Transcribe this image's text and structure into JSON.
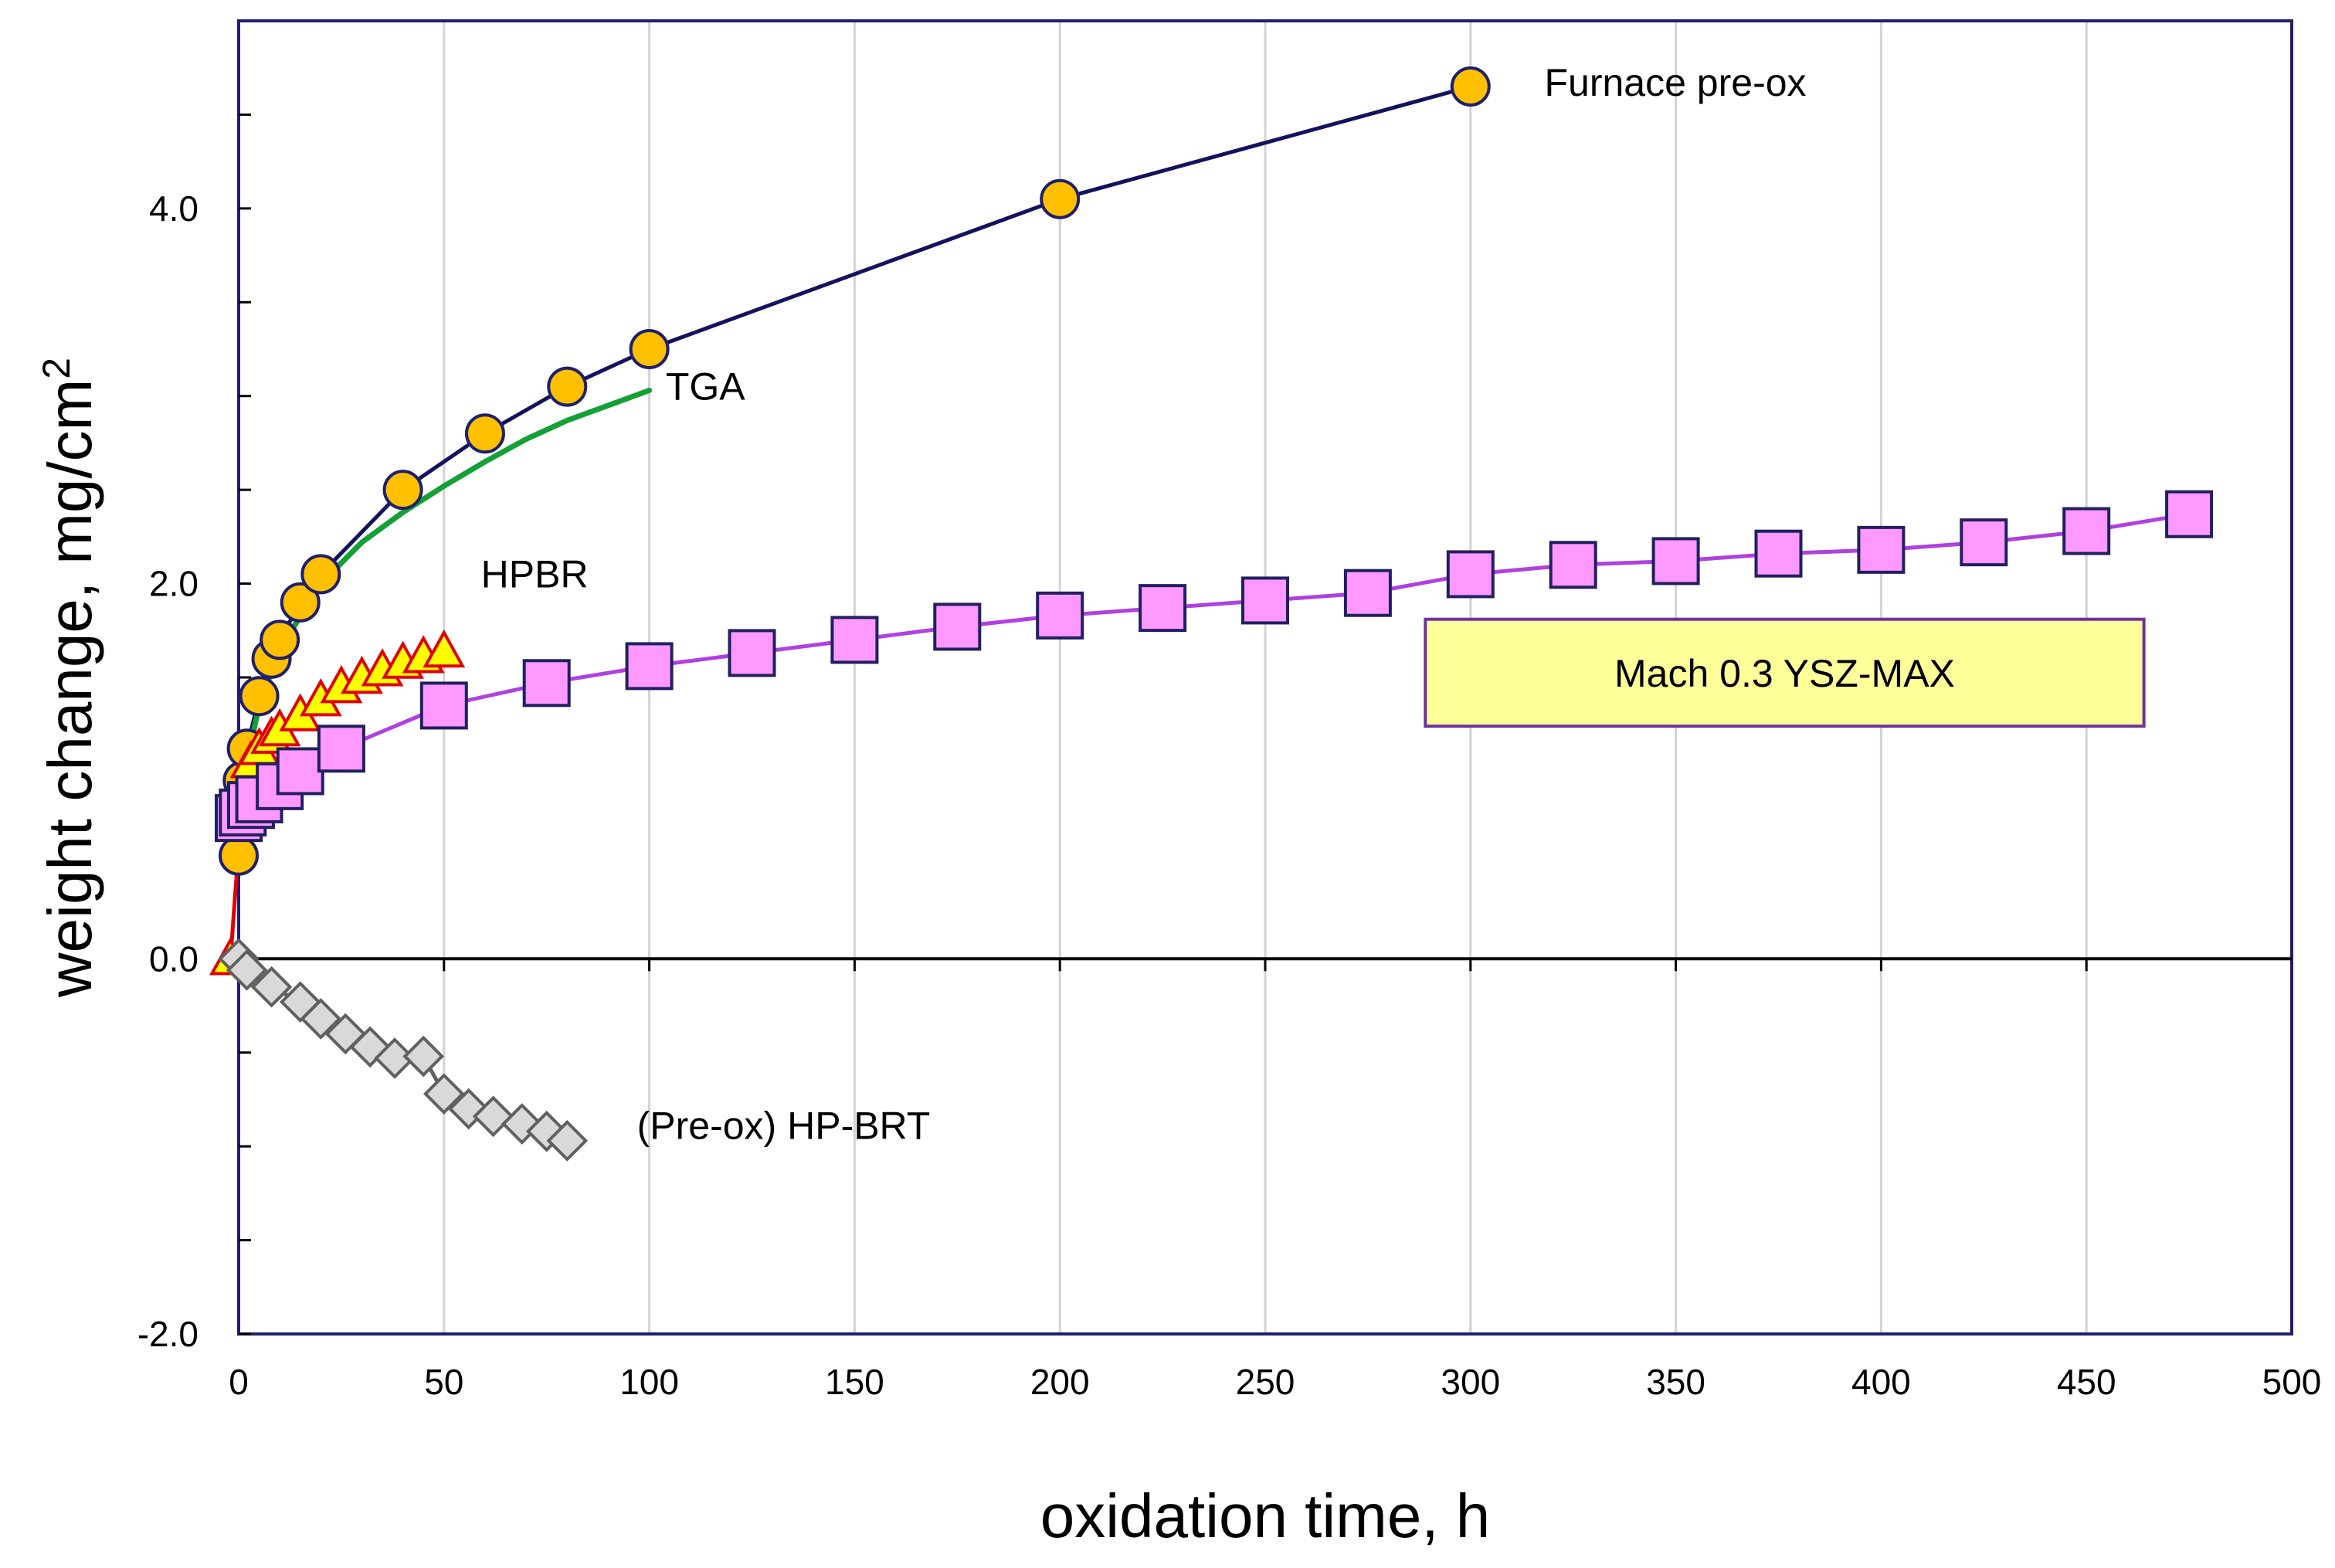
{
  "chart_data": {
    "type": "scatter",
    "xlabel": "oxidation time, h",
    "ylabel": "weight change, mg/cm",
    "ylabel_superscript": "2",
    "xlim": [
      0,
      500
    ],
    "ylim": [
      -2,
      5
    ],
    "x_ticks": [
      0,
      50,
      100,
      150,
      200,
      250,
      300,
      350,
      400,
      450,
      500
    ],
    "x_tick_labels": [
      "0",
      "50",
      "100",
      "150",
      "200",
      "250",
      "300",
      "350",
      "400",
      "450",
      "500"
    ],
    "y_ticks_labeled": [
      -2,
      0,
      2,
      4
    ],
    "y_tick_labels": [
      "-2.0",
      "0.0",
      "2.0",
      "4.0"
    ],
    "y_minor_ticks": [
      -1.5,
      -1,
      -0.5,
      0.5,
      1,
      1.5,
      2.5,
      3,
      3.5,
      4.5
    ],
    "grid": "vertical",
    "legend_box": "Mach 0.3 YSZ-MAX",
    "series": [
      {
        "name": "Furnace pre-ox",
        "marker": "circle",
        "marker_color": "#FFC000",
        "marker_edge": "#1F1F6E",
        "line_color": "#12125E",
        "x": [
          0,
          1,
          2,
          5,
          8,
          10,
          15,
          20,
          40,
          60,
          80,
          100,
          200,
          300
        ],
        "y": [
          0.55,
          0.95,
          1.12,
          1.4,
          1.6,
          1.7,
          1.9,
          2.05,
          2.5,
          2.8,
          3.05,
          3.25,
          4.05,
          4.65
        ]
      },
      {
        "name": "TGA",
        "marker": "none",
        "line_color": "#13A035",
        "x": [
          1,
          2,
          5,
          10,
          20,
          30,
          40,
          50,
          60,
          70,
          80,
          90,
          100
        ],
        "y": [
          0.75,
          1.05,
          1.35,
          1.65,
          2.0,
          2.22,
          2.38,
          2.52,
          2.65,
          2.77,
          2.87,
          2.95,
          3.03
        ]
      },
      {
        "name": "HPBR",
        "marker": "triangle",
        "marker_color": "#FFFF00",
        "marker_edge": "#E00000",
        "line_color": "#E00000",
        "x": [
          -2,
          1,
          3,
          5,
          8,
          10,
          15,
          20,
          25,
          30,
          35,
          40,
          45,
          50
        ],
        "y": [
          0.0,
          0.9,
          1.05,
          1.12,
          1.18,
          1.22,
          1.3,
          1.38,
          1.45,
          1.5,
          1.54,
          1.58,
          1.61,
          1.64
        ]
      },
      {
        "name": "Mach 0.3 YSZ-MAX",
        "marker": "square",
        "marker_color": "#FF99FF",
        "marker_edge": "#202060",
        "line_color": "#B040E0",
        "x": [
          0,
          1,
          3,
          5,
          10,
          15,
          25,
          50,
          75,
          100,
          125,
          150,
          175,
          200,
          225,
          250,
          275,
          300,
          325,
          350,
          375,
          400,
          425,
          450,
          475
        ],
        "y": [
          0.75,
          0.78,
          0.82,
          0.85,
          0.92,
          1.0,
          1.12,
          1.35,
          1.47,
          1.56,
          1.63,
          1.7,
          1.77,
          1.83,
          1.87,
          1.91,
          1.95,
          2.05,
          2.1,
          2.12,
          2.16,
          2.18,
          2.22,
          2.28,
          2.37
        ]
      },
      {
        "name": "(Pre-ox) HP-BRT",
        "marker": "diamond",
        "marker_color": "#D9D9D9",
        "marker_edge": "#606060",
        "line_color": "#606060",
        "x": [
          0,
          2,
          8,
          15,
          20,
          26,
          32,
          38,
          45,
          50,
          56,
          62,
          69,
          75,
          80
        ],
        "y": [
          0.0,
          -0.06,
          -0.15,
          -0.23,
          -0.32,
          -0.4,
          -0.47,
          -0.53,
          -0.52,
          -0.72,
          -0.8,
          -0.84,
          -0.88,
          -0.92,
          -0.97
        ]
      }
    ],
    "annotations": [
      {
        "text": "Furnace pre-ox",
        "x": 318,
        "y": 4.6
      },
      {
        "text": "TGA",
        "x": 104,
        "y": 2.98
      },
      {
        "text": "HPBR",
        "x": 59,
        "y": 1.98
      },
      {
        "text": "(Pre-ox) HP-BRT",
        "x": 97,
        "y": -0.96
      }
    ]
  }
}
